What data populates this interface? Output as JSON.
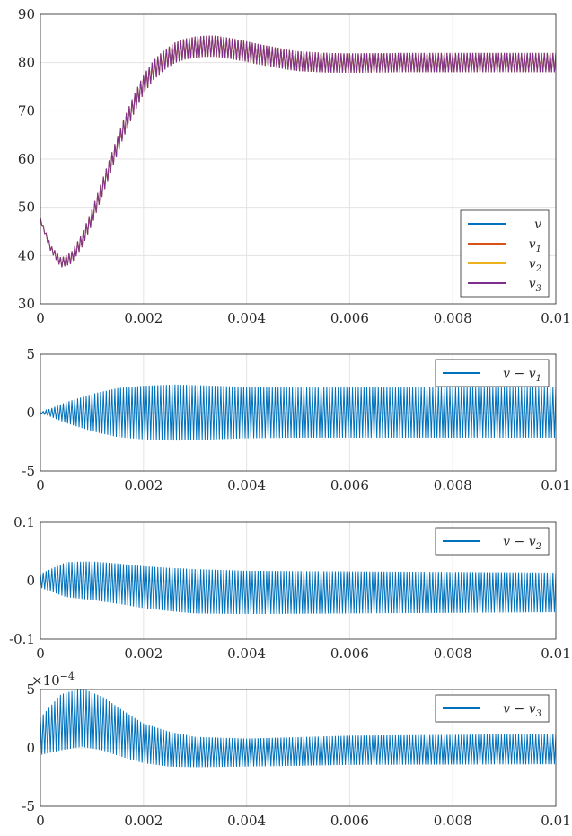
{
  "chart_data": [
    {
      "type": "line",
      "xlim": [
        0,
        0.01
      ],
      "ylim": [
        30,
        90
      ],
      "x_ticks": [
        "0",
        "0.002",
        "0.004",
        "0.006",
        "0.008",
        "0.01"
      ],
      "y_ticks": [
        "30",
        "40",
        "50",
        "60",
        "70",
        "80",
        "90"
      ],
      "grid": true,
      "legend_position": "bottom-right",
      "ripple_cycles": 180,
      "series": [
        {
          "name": "v",
          "label": "v",
          "sub": "",
          "color": "#0072BD"
        },
        {
          "name": "v1",
          "label": "v",
          "sub": "1",
          "color": "#D95319"
        },
        {
          "name": "v2",
          "label": "v",
          "sub": "2",
          "color": "#EDB120"
        },
        {
          "name": "v3",
          "label": "v",
          "sub": "3",
          "color": "#7E2F8E"
        }
      ],
      "center": [
        [
          0,
          47.5
        ],
        [
          0.0002,
          41.5
        ],
        [
          0.0004,
          38.5
        ],
        [
          0.0006,
          39.5
        ],
        [
          0.0008,
          43
        ],
        [
          0.001,
          48
        ],
        [
          0.0012,
          54
        ],
        [
          0.0014,
          60
        ],
        [
          0.0016,
          66
        ],
        [
          0.0018,
          71
        ],
        [
          0.002,
          75.5
        ],
        [
          0.0022,
          78.5
        ],
        [
          0.0024,
          80.5
        ],
        [
          0.0026,
          82
        ],
        [
          0.0028,
          82.8
        ],
        [
          0.003,
          83.2
        ],
        [
          0.0032,
          83.4
        ],
        [
          0.0034,
          83.4
        ],
        [
          0.0036,
          83.1
        ],
        [
          0.0038,
          82.7
        ],
        [
          0.004,
          82.3
        ],
        [
          0.0042,
          81.8
        ],
        [
          0.0044,
          81.4
        ],
        [
          0.0046,
          81
        ],
        [
          0.0048,
          80.6
        ],
        [
          0.005,
          80.3
        ],
        [
          0.0055,
          80
        ],
        [
          0.006,
          79.9
        ],
        [
          0.007,
          80
        ],
        [
          0.008,
          80
        ],
        [
          0.01,
          80
        ]
      ],
      "amplitude": [
        [
          0,
          0.3
        ],
        [
          0.0004,
          1.0
        ],
        [
          0.001,
          1.6
        ],
        [
          0.002,
          2.0
        ],
        [
          0.003,
          2.2
        ],
        [
          0.006,
          2.0
        ],
        [
          0.01,
          2.0
        ]
      ]
    },
    {
      "type": "line",
      "xlim": [
        0,
        0.01
      ],
      "ylim": [
        -5,
        5
      ],
      "x_ticks": [
        "0",
        "0.002",
        "0.004",
        "0.006",
        "0.008",
        "0.01"
      ],
      "y_ticks": [
        "-5",
        "0",
        "5"
      ],
      "grid": true,
      "legend_position": "top-right",
      "ripple_cycles": 180,
      "series": [
        {
          "name": "v - v1",
          "label": "v − v",
          "sub": "1",
          "color": "#0072BD"
        }
      ],
      "center": [
        [
          0,
          0
        ],
        [
          0.01,
          0
        ]
      ],
      "amplitude": [
        [
          0,
          0
        ],
        [
          0.0005,
          0.9
        ],
        [
          0.001,
          1.6
        ],
        [
          0.0015,
          2.1
        ],
        [
          0.002,
          2.3
        ],
        [
          0.0026,
          2.4
        ],
        [
          0.003,
          2.35
        ],
        [
          0.004,
          2.2
        ],
        [
          0.005,
          2.15
        ],
        [
          0.01,
          2.15
        ]
      ]
    },
    {
      "type": "line",
      "xlim": [
        0,
        0.01
      ],
      "ylim": [
        -0.1,
        0.1
      ],
      "x_ticks": [
        "0",
        "0.002",
        "0.004",
        "0.006",
        "0.008",
        "0.01"
      ],
      "y_ticks": [
        "-0.1",
        "0",
        "0.1"
      ],
      "grid": true,
      "legend_position": "top-right",
      "ripple_cycles": 180,
      "series": [
        {
          "name": "v - v2",
          "label": "v − v",
          "sub": "2",
          "color": "#0072BD"
        }
      ],
      "center": [
        [
          0,
          0
        ],
        [
          0.0005,
          0.002
        ],
        [
          0.001,
          0.0
        ],
        [
          0.0015,
          -0.005
        ],
        [
          0.002,
          -0.011
        ],
        [
          0.0025,
          -0.015
        ],
        [
          0.003,
          -0.018
        ],
        [
          0.004,
          -0.02
        ],
        [
          0.005,
          -0.02
        ],
        [
          0.01,
          -0.02
        ]
      ],
      "amplitude": [
        [
          0,
          0.012
        ],
        [
          0.0005,
          0.03
        ],
        [
          0.001,
          0.033
        ],
        [
          0.002,
          0.036
        ],
        [
          0.003,
          0.038
        ],
        [
          0.004,
          0.037
        ],
        [
          0.01,
          0.034
        ]
      ]
    },
    {
      "type": "line",
      "xlim": [
        0,
        0.01
      ],
      "ylim": [
        -5,
        5
      ],
      "y_exponent": "×10",
      "y_exponent_power": "−4",
      "x_ticks": [
        "0",
        "0.002",
        "0.004",
        "0.006",
        "0.008",
        "0.01"
      ],
      "y_ticks": [
        "-5",
        "0",
        "5"
      ],
      "grid": true,
      "legend_position": "top-right",
      "ripple_cycles": 180,
      "series": [
        {
          "name": "v - v3",
          "label": "v − v",
          "sub": "3",
          "color": "#0072BD"
        }
      ],
      "center": [
        [
          0,
          1.0
        ],
        [
          0.0004,
          2.2
        ],
        [
          0.0008,
          2.6
        ],
        [
          0.0012,
          2.1
        ],
        [
          0.0016,
          1.2
        ],
        [
          0.002,
          0.4
        ],
        [
          0.0025,
          -0.1
        ],
        [
          0.003,
          -0.35
        ],
        [
          0.004,
          -0.4
        ],
        [
          0.005,
          -0.3
        ],
        [
          0.006,
          -0.2
        ],
        [
          0.01,
          -0.1
        ]
      ],
      "amplitude": [
        [
          0,
          1.6
        ],
        [
          0.0004,
          2.4
        ],
        [
          0.0008,
          2.5
        ],
        [
          0.0012,
          2.3
        ],
        [
          0.0016,
          2.0
        ],
        [
          0.002,
          1.7
        ],
        [
          0.003,
          1.3
        ],
        [
          0.004,
          1.2
        ],
        [
          0.006,
          1.25
        ],
        [
          0.01,
          1.3
        ]
      ]
    }
  ]
}
